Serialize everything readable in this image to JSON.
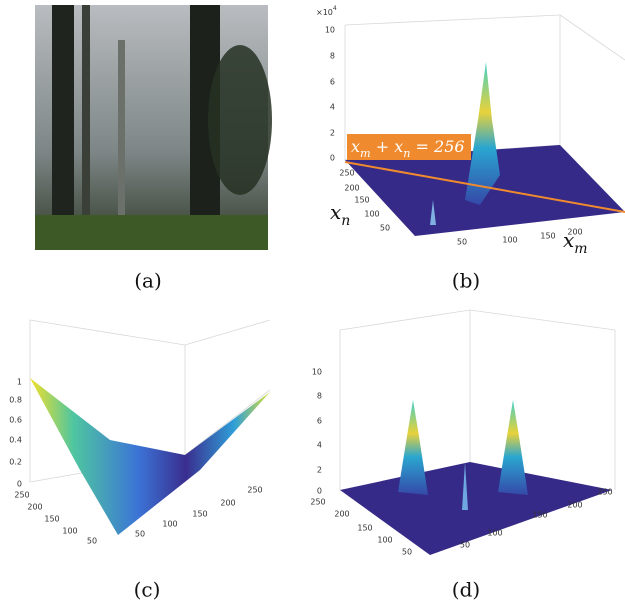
{
  "panels": [
    {
      "caption": "(a)"
    },
    {
      "caption": "(b)",
      "z_multiplier": {
        "text": "×10",
        "sup": "4"
      },
      "z_ticks": [
        10,
        8,
        6,
        4,
        2,
        0
      ],
      "y_ticks": [
        250,
        200,
        150,
        100,
        50
      ],
      "x_ticks": [
        50,
        100,
        150,
        200
      ],
      "y_label": {
        "text": "x",
        "sub": "n"
      },
      "x_label": {
        "text": "x",
        "sub": "m"
      },
      "annotation": [
        {
          "text": "x",
          "sub": "m"
        },
        {
          "text": " + "
        },
        {
          "text": "x",
          "sub": "n"
        },
        {
          "text": " = 256"
        }
      ]
    },
    {
      "caption": "(c)",
      "z_ticks": [
        1,
        0.8,
        0.6,
        0.4,
        0.2,
        0
      ],
      "y_ticks": [
        250,
        200,
        150,
        100,
        50
      ],
      "x_ticks": [
        50,
        100,
        150,
        200,
        250
      ]
    },
    {
      "caption": "(d)",
      "z_ticks": [
        10,
        8,
        6,
        4,
        2,
        0
      ],
      "y_ticks": [
        250,
        200,
        150,
        100,
        50
      ],
      "x_ticks": [
        50,
        100,
        150,
        200,
        250
      ]
    }
  ]
}
